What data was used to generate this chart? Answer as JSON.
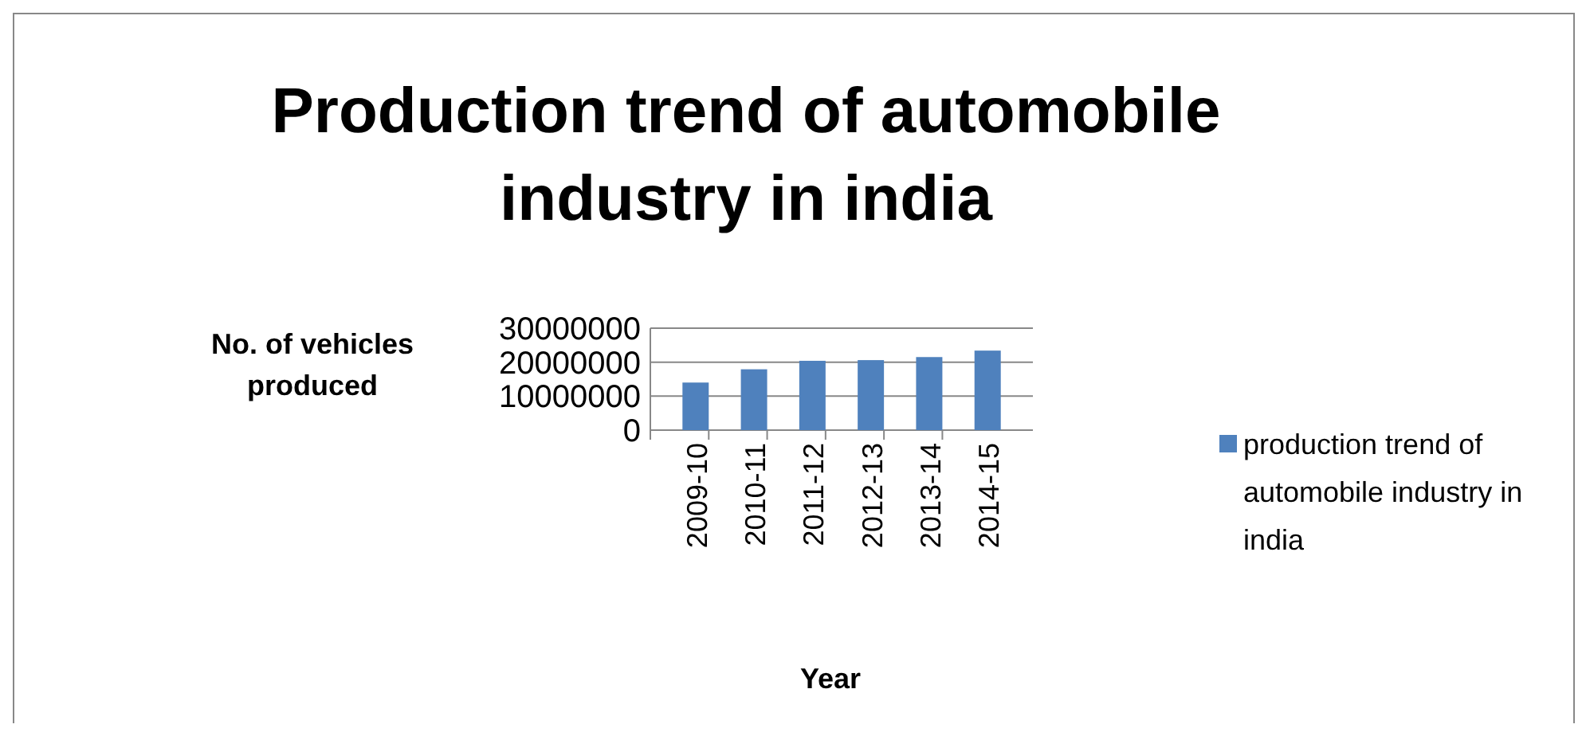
{
  "chart_data": {
    "type": "bar",
    "title": "Production trend of automobile industry in india",
    "xlabel": "Year",
    "ylabel": "No. of vehicles produced",
    "categories": [
      "2009-10",
      "2010-11",
      "2011-12",
      "2012-13",
      "2013-14",
      "2014-15"
    ],
    "series": [
      {
        "name": "production trend of automobile industry in india",
        "color": "#4f81bd",
        "values": [
          14000000,
          17900000,
          20400000,
          20600000,
          21500000,
          23400000
        ]
      }
    ],
    "ylim": [
      0,
      30000000
    ],
    "yticks": [
      0,
      10000000,
      20000000,
      30000000
    ],
    "grid": "y",
    "legend": "right"
  }
}
